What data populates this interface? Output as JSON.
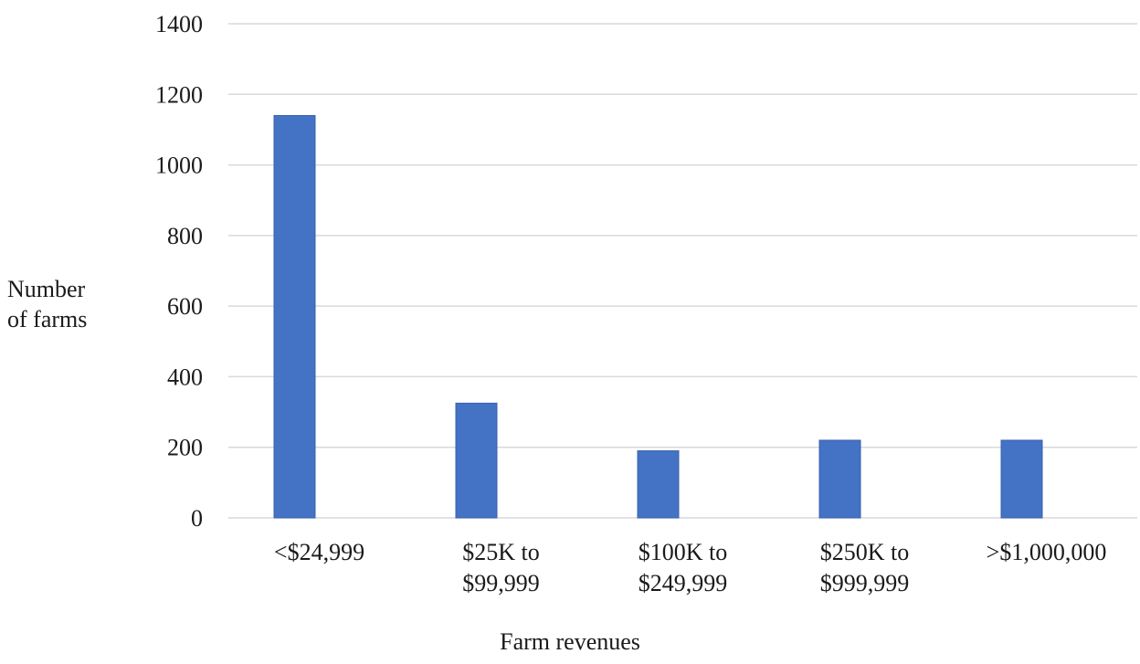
{
  "chart_data": {
    "type": "bar",
    "categories": [
      [
        "<$24,999"
      ],
      [
        "$25K to",
        "$99,999"
      ],
      [
        "$100K to",
        "$249,999"
      ],
      [
        "$250K to",
        "$999,999"
      ],
      [
        ">$1,000,000"
      ]
    ],
    "values": [
      1140,
      325,
      190,
      220,
      220
    ],
    "ylim": [
      0,
      1400
    ],
    "yticks": [
      0,
      200,
      400,
      600,
      800,
      1000,
      1200,
      1400
    ],
    "ylabel_lines": [
      "Number",
      "of farms"
    ],
    "xlabel": "Farm revenues",
    "grid": true,
    "bar_color": "#4472c4",
    "grid_color": "#d9d9d9"
  }
}
